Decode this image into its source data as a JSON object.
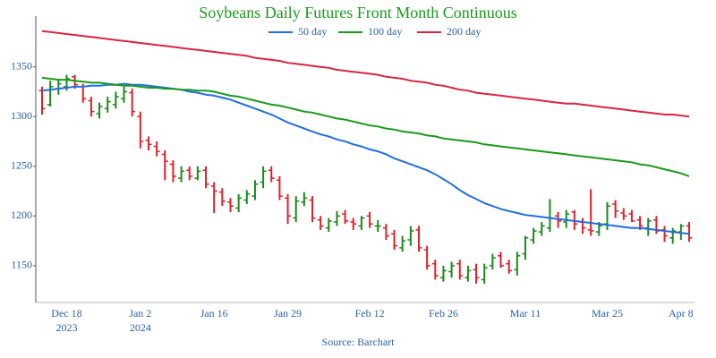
{
  "chart_data": {
    "type": "ohlc",
    "title": "Soybeans Daily Futures Front Month Continuous",
    "source": "Source: Barchart",
    "categories": [
      null,
      null,
      null,
      "Dec 18",
      null,
      null,
      null,
      null,
      null,
      null,
      null,
      null,
      "Jan 2",
      null,
      null,
      null,
      null,
      null,
      null,
      null,
      null,
      "Jan 16",
      null,
      null,
      null,
      null,
      null,
      null,
      null,
      null,
      "Jan 29",
      null,
      null,
      null,
      null,
      null,
      null,
      null,
      null,
      null,
      "Feb 12",
      null,
      null,
      null,
      null,
      null,
      null,
      null,
      null,
      "Feb 26",
      null,
      null,
      null,
      null,
      null,
      null,
      null,
      null,
      null,
      "Mar 11",
      null,
      null,
      null,
      null,
      null,
      null,
      null,
      null,
      null,
      "Mar 25",
      null,
      null,
      null,
      null,
      null,
      null,
      null,
      null,
      "Apr 8",
      null
    ],
    "year_labels": [
      {
        "value": 3,
        "label": "2023"
      },
      {
        "value": 12,
        "label": "2024"
      }
    ],
    "open": [
      1326,
      1312,
      1328,
      1330,
      1340,
      1330,
      1316,
      1303,
      1308,
      1312,
      1318,
      1324,
      1300,
      1276,
      1270,
      1262,
      1252,
      1238,
      1246,
      1238,
      1246,
      1230,
      1224,
      1214,
      1208,
      1216,
      1220,
      1234,
      1246,
      1236,
      1218,
      1198,
      1214,
      1216,
      1196,
      1188,
      1194,
      1202,
      1194,
      1190,
      1200,
      1190,
      1188,
      1182,
      1168,
      1176,
      1186,
      1166,
      1152,
      1138,
      1144,
      1152,
      1138,
      1146,
      1136,
      1150,
      1160,
      1152,
      1146,
      1162,
      1176,
      1184,
      1188,
      1200,
      1194,
      1204,
      1194,
      1186,
      1184,
      1192,
      1212,
      1203,
      1202,
      1196,
      1188,
      1196,
      1186,
      1178,
      1184,
      1190
    ],
    "high": [
      1330,
      1336,
      1338,
      1342,
      1342,
      1333,
      1320,
      1314,
      1320,
      1325,
      1330,
      1328,
      1305,
      1280,
      1275,
      1266,
      1256,
      1250,
      1250,
      1250,
      1250,
      1234,
      1228,
      1218,
      1222,
      1226,
      1236,
      1250,
      1250,
      1240,
      1222,
      1220,
      1224,
      1220,
      1200,
      1198,
      1205,
      1206,
      1198,
      1200,
      1204,
      1196,
      1192,
      1186,
      1180,
      1190,
      1190,
      1170,
      1156,
      1150,
      1154,
      1156,
      1150,
      1152,
      1152,
      1162,
      1164,
      1156,
      1164,
      1180,
      1188,
      1194,
      1217,
      1204,
      1206,
      1206,
      1198,
      1227,
      1194,
      1214,
      1216,
      1208,
      1206,
      1200,
      1198,
      1200,
      1190,
      1188,
      1192,
      1194
    ],
    "low": [
      1302,
      1310,
      1322,
      1326,
      1328,
      1314,
      1300,
      1298,
      1304,
      1308,
      1314,
      1300,
      1268,
      1266,
      1260,
      1236,
      1234,
      1234,
      1236,
      1236,
      1228,
      1203,
      1210,
      1204,
      1204,
      1212,
      1216,
      1228,
      1234,
      1216,
      1192,
      1194,
      1210,
      1194,
      1186,
      1184,
      1190,
      1192,
      1186,
      1186,
      1188,
      1184,
      1176,
      1166,
      1164,
      1170,
      1164,
      1146,
      1136,
      1134,
      1138,
      1136,
      1134,
      1132,
      1132,
      1146,
      1148,
      1142,
      1140,
      1156,
      1172,
      1180,
      1184,
      1188,
      1188,
      1186,
      1182,
      1180,
      1180,
      1186,
      1198,
      1196,
      1194,
      1186,
      1180,
      1182,
      1174,
      1172,
      1176,
      1174
    ],
    "close": [
      1308,
      1330,
      1333,
      1338,
      1332,
      1318,
      1305,
      1310,
      1315,
      1320,
      1325,
      1305,
      1275,
      1272,
      1265,
      1255,
      1240,
      1245,
      1240,
      1245,
      1232,
      1225,
      1215,
      1210,
      1218,
      1222,
      1232,
      1245,
      1238,
      1220,
      1200,
      1215,
      1218,
      1198,
      1190,
      1195,
      1200,
      1195,
      1192,
      1198,
      1192,
      1190,
      1180,
      1170,
      1175,
      1185,
      1168,
      1150,
      1140,
      1145,
      1150,
      1140,
      1145,
      1138,
      1148,
      1158,
      1150,
      1145,
      1160,
      1178,
      1185,
      1190,
      1198,
      1195,
      1202,
      1192,
      1188,
      1185,
      1190,
      1210,
      1205,
      1200,
      1195,
      1190,
      1195,
      1185,
      1180,
      1185,
      1190,
      1178
    ],
    "up_color": "#1a8a1a",
    "down_color": "#e0202a",
    "series": [
      {
        "name": "50 day",
        "color": "#1f6fe0",
        "values": [
          1326,
          1327,
          1328,
          1329,
          1330,
          1330,
          1331,
          1331,
          1332,
          1332,
          1333,
          1332,
          1332,
          1331,
          1330,
          1329,
          1328,
          1327,
          1325,
          1324,
          1322,
          1321,
          1319,
          1317,
          1314,
          1311,
          1308,
          1305,
          1302,
          1298,
          1294,
          1291,
          1288,
          1285,
          1282,
          1280,
          1277,
          1275,
          1272,
          1270,
          1267,
          1265,
          1262,
          1258,
          1255,
          1252,
          1249,
          1246,
          1242,
          1237,
          1232,
          1226,
          1221,
          1217,
          1213,
          1210,
          1207,
          1205,
          1203,
          1201,
          1200,
          1199,
          1198,
          1197,
          1196,
          1195,
          1194,
          1193,
          1192,
          1191,
          1190,
          1189,
          1188,
          1188,
          1187,
          1186,
          1185,
          1184,
          1183,
          1182
        ]
      },
      {
        "name": "100 day",
        "color": "#1a9a1a",
        "values": [
          1339,
          1338,
          1337,
          1337,
          1336,
          1335,
          1334,
          1334,
          1333,
          1332,
          1331,
          1331,
          1330,
          1329,
          1329,
          1328,
          1328,
          1327,
          1327,
          1326,
          1326,
          1325,
          1323,
          1321,
          1320,
          1318,
          1316,
          1314,
          1312,
          1311,
          1309,
          1307,
          1305,
          1304,
          1302,
          1300,
          1298,
          1297,
          1295,
          1293,
          1291,
          1290,
          1288,
          1287,
          1285,
          1284,
          1283,
          1281,
          1280,
          1278,
          1277,
          1276,
          1275,
          1274,
          1272,
          1271,
          1270,
          1269,
          1268,
          1267,
          1266,
          1265,
          1264,
          1263,
          1262,
          1261,
          1260,
          1259,
          1258,
          1257,
          1256,
          1255,
          1254,
          1252,
          1251,
          1249,
          1247,
          1245,
          1243,
          1240
        ]
      },
      {
        "name": "200 day",
        "color": "#d9263f",
        "values": [
          1386,
          1385,
          1384,
          1383,
          1382,
          1381,
          1380,
          1379,
          1378,
          1377,
          1376,
          1375,
          1374,
          1373,
          1372,
          1371,
          1370,
          1369,
          1368,
          1367,
          1366,
          1365,
          1364,
          1363,
          1362,
          1361,
          1359,
          1358,
          1357,
          1356,
          1354,
          1353,
          1352,
          1351,
          1350,
          1349,
          1347,
          1346,
          1345,
          1344,
          1343,
          1342,
          1340,
          1339,
          1338,
          1336,
          1335,
          1334,
          1332,
          1331,
          1329,
          1327,
          1326,
          1324,
          1323,
          1322,
          1321,
          1320,
          1319,
          1318,
          1317,
          1316,
          1315,
          1314,
          1313,
          1313,
          1312,
          1311,
          1310,
          1309,
          1308,
          1307,
          1306,
          1305,
          1304,
          1303,
          1302,
          1302,
          1301,
          1300
        ]
      }
    ],
    "ylim": [
      1113,
      1401
    ],
    "yticks": [
      1150,
      1200,
      1250,
      1300,
      1350
    ]
  }
}
